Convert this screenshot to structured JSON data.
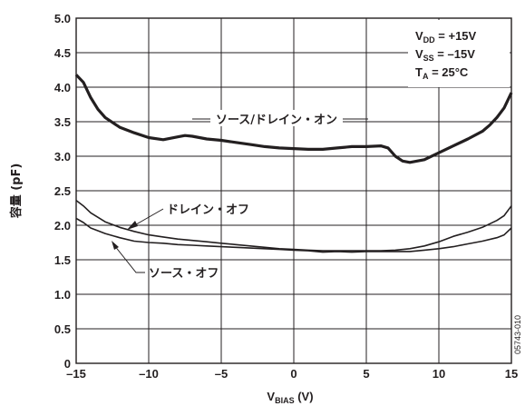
{
  "chart_data": {
    "type": "line",
    "xlabel_main": "V",
    "xlabel_sub": "BIAS",
    "xlabel_unit": " (V)",
    "ylabel": "容量 (pF)",
    "xlim": [
      -15,
      15
    ],
    "ylim": [
      0,
      5
    ],
    "grid": true,
    "x_ticks": [
      "–15",
      "–10",
      "–5",
      "0",
      "5",
      "10",
      "15"
    ],
    "y_ticks": [
      "0",
      "0.5",
      "1.0",
      "1.5",
      "2.0",
      "2.5",
      "3.0",
      "3.5",
      "4.0",
      "4.5",
      "5.0"
    ],
    "conditions": {
      "vdd_main": "V",
      "vdd_sub": "DD",
      "vdd_val": " = +15V",
      "vss_main": "V",
      "vss_sub": "SS",
      "vss_val": " = –15V",
      "ta_main": "T",
      "ta_sub": "A",
      "ta_val": " = 25°C"
    },
    "figure_id": "05743-010",
    "series": [
      {
        "name": "ソース/ドレイン・オン",
        "points": [
          [
            -15,
            4.18
          ],
          [
            -14.5,
            4.07
          ],
          [
            -14,
            3.85
          ],
          [
            -13.5,
            3.68
          ],
          [
            -13,
            3.56
          ],
          [
            -12,
            3.42
          ],
          [
            -11,
            3.34
          ],
          [
            -10,
            3.27
          ],
          [
            -9,
            3.24
          ],
          [
            -8,
            3.28
          ],
          [
            -7.5,
            3.3
          ],
          [
            -7,
            3.29
          ],
          [
            -6,
            3.25
          ],
          [
            -5,
            3.23
          ],
          [
            -4,
            3.2
          ],
          [
            -3,
            3.17
          ],
          [
            -2,
            3.14
          ],
          [
            -1,
            3.12
          ],
          [
            0,
            3.11
          ],
          [
            1,
            3.1
          ],
          [
            2,
            3.1
          ],
          [
            3,
            3.12
          ],
          [
            4,
            3.14
          ],
          [
            5,
            3.14
          ],
          [
            6,
            3.15
          ],
          [
            6.5,
            3.12
          ],
          [
            7,
            3.0
          ],
          [
            7.5,
            2.93
          ],
          [
            8,
            2.91
          ],
          [
            9,
            2.95
          ],
          [
            10,
            3.05
          ],
          [
            11,
            3.15
          ],
          [
            12,
            3.25
          ],
          [
            13,
            3.36
          ],
          [
            13.5,
            3.45
          ],
          [
            14,
            3.56
          ],
          [
            14.5,
            3.7
          ],
          [
            15,
            3.92
          ]
        ]
      },
      {
        "name": "ドレイン・オフ",
        "points": [
          [
            -15,
            2.36
          ],
          [
            -14.5,
            2.28
          ],
          [
            -14,
            2.18
          ],
          [
            -13,
            2.05
          ],
          [
            -12,
            1.97
          ],
          [
            -11,
            1.91
          ],
          [
            -10,
            1.86
          ],
          [
            -9,
            1.83
          ],
          [
            -8,
            1.8
          ],
          [
            -7,
            1.78
          ],
          [
            -6,
            1.76
          ],
          [
            -5,
            1.74
          ],
          [
            -4,
            1.72
          ],
          [
            -3,
            1.7
          ],
          [
            -2,
            1.68
          ],
          [
            -1,
            1.66
          ],
          [
            0,
            1.65
          ],
          [
            1,
            1.64
          ],
          [
            2,
            1.63
          ],
          [
            3,
            1.63
          ],
          [
            4,
            1.63
          ],
          [
            5,
            1.63
          ],
          [
            6,
            1.63
          ],
          [
            7,
            1.64
          ],
          [
            8,
            1.66
          ],
          [
            9,
            1.7
          ],
          [
            10,
            1.76
          ],
          [
            11,
            1.84
          ],
          [
            12,
            1.9
          ],
          [
            13,
            1.97
          ],
          [
            14,
            2.07
          ],
          [
            14.5,
            2.14
          ],
          [
            15,
            2.28
          ]
        ]
      },
      {
        "name": "ソース・オフ",
        "points": [
          [
            -15,
            2.1
          ],
          [
            -14.5,
            2.04
          ],
          [
            -14,
            1.96
          ],
          [
            -13,
            1.88
          ],
          [
            -12,
            1.82
          ],
          [
            -11,
            1.77
          ],
          [
            -10,
            1.75
          ],
          [
            -9,
            1.74
          ],
          [
            -8,
            1.72
          ],
          [
            -7,
            1.71
          ],
          [
            -6,
            1.7
          ],
          [
            -5,
            1.69
          ],
          [
            -4,
            1.68
          ],
          [
            -3,
            1.67
          ],
          [
            -2,
            1.66
          ],
          [
            -1,
            1.65
          ],
          [
            0,
            1.64
          ],
          [
            1,
            1.63
          ],
          [
            2,
            1.61
          ],
          [
            3,
            1.62
          ],
          [
            4,
            1.61
          ],
          [
            5,
            1.62
          ],
          [
            6,
            1.62
          ],
          [
            7,
            1.62
          ],
          [
            8,
            1.62
          ],
          [
            9,
            1.64
          ],
          [
            10,
            1.66
          ],
          [
            11,
            1.69
          ],
          [
            12,
            1.73
          ],
          [
            13,
            1.77
          ],
          [
            14,
            1.82
          ],
          [
            14.5,
            1.86
          ],
          [
            15,
            1.96
          ]
        ]
      }
    ]
  }
}
